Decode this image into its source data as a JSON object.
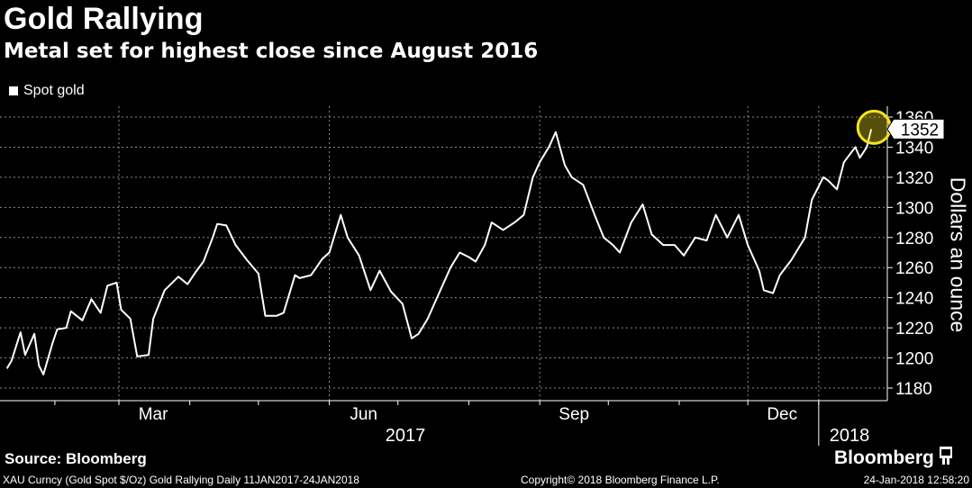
{
  "header": {
    "title": "Gold Rallying",
    "subtitle": "Metal set for highest close since August 2016"
  },
  "legend": {
    "label": "Spot gold"
  },
  "footer": {
    "source": "Source: Bloomberg",
    "ticker_line": "XAU Curncy (Gold Spot  $/Oz) Gold Rallying  Daily 11JAN2017-24JAN2018",
    "copyright": "Copyright© 2018 Bloomberg Finance L.P.",
    "timestamp": "24-Jan-2018 12:58:20",
    "brand": "Bloomberg"
  },
  "colors": {
    "background": "#000000",
    "line": "#ffffff",
    "highlight": "#f5e21b",
    "grid": "#8a8a8a"
  },
  "chart_data": {
    "type": "line",
    "title": "Gold Rallying",
    "subtitle": "Metal set for highest close since August 2016",
    "ylabel": "Dollars an ounce",
    "ylim": [
      1170,
      1360
    ],
    "yticks": [
      1180,
      1200,
      1220,
      1240,
      1260,
      1280,
      1300,
      1320,
      1340,
      1360
    ],
    "x_month_labels": [
      "Mar",
      "Jun",
      "Sep",
      "Dec"
    ],
    "x_year_labels": [
      "2017",
      "2018"
    ],
    "latest_value_label": "1352",
    "grid": true,
    "legend_position": "top-left",
    "series": [
      {
        "name": "Spot gold",
        "x": [
          "2017-01-11",
          "2017-01-13",
          "2017-01-17",
          "2017-01-19",
          "2017-01-23",
          "2017-01-25",
          "2017-01-27",
          "2017-01-31",
          "2017-02-02",
          "2017-02-06",
          "2017-02-08",
          "2017-02-13",
          "2017-02-17",
          "2017-02-21",
          "2017-02-24",
          "2017-02-28",
          "2017-03-02",
          "2017-03-06",
          "2017-03-09",
          "2017-03-14",
          "2017-03-16",
          "2017-03-21",
          "2017-03-27",
          "2017-03-31",
          "2017-04-04",
          "2017-04-07",
          "2017-04-11",
          "2017-04-13",
          "2017-04-17",
          "2017-04-21",
          "2017-04-26",
          "2017-05-01",
          "2017-05-04",
          "2017-05-09",
          "2017-05-12",
          "2017-05-17",
          "2017-05-19",
          "2017-05-24",
          "2017-05-29",
          "2017-06-01",
          "2017-06-06",
          "2017-06-09",
          "2017-06-14",
          "2017-06-19",
          "2017-06-23",
          "2017-06-28",
          "2017-07-03",
          "2017-07-07",
          "2017-07-10",
          "2017-07-14",
          "2017-07-19",
          "2017-07-24",
          "2017-07-28",
          "2017-08-01",
          "2017-08-04",
          "2017-08-08",
          "2017-08-11",
          "2017-08-16",
          "2017-08-21",
          "2017-08-25",
          "2017-08-29",
          "2017-09-01",
          "2017-09-05",
          "2017-09-08",
          "2017-09-12",
          "2017-09-15",
          "2017-09-20",
          "2017-09-25",
          "2017-09-29",
          "2017-10-03",
          "2017-10-06",
          "2017-10-11",
          "2017-10-16",
          "2017-10-20",
          "2017-10-25",
          "2017-10-30",
          "2017-11-03",
          "2017-11-08",
          "2017-11-13",
          "2017-11-17",
          "2017-11-22",
          "2017-11-27",
          "2017-12-01",
          "2017-12-06",
          "2017-12-08",
          "2017-12-12",
          "2017-12-15",
          "2017-12-20",
          "2017-12-26",
          "2017-12-29",
          "2018-01-03",
          "2018-01-05",
          "2018-01-09",
          "2018-01-12",
          "2018-01-17",
          "2018-01-19",
          "2018-01-22",
          "2018-01-24"
        ],
        "values": [
          1193,
          1198,
          1217,
          1202,
          1216,
          1195,
          1189,
          1210,
          1219,
          1220,
          1231,
          1225,
          1239,
          1230,
          1248,
          1250,
          1232,
          1226,
          1201,
          1202,
          1226,
          1245,
          1254,
          1249,
          1258,
          1264,
          1280,
          1289,
          1288,
          1275,
          1265,
          1256,
          1228,
          1228,
          1230,
          1255,
          1253,
          1255,
          1266,
          1270,
          1295,
          1280,
          1268,
          1245,
          1258,
          1244,
          1236,
          1213,
          1216,
          1226,
          1243,
          1260,
          1270,
          1267,
          1264,
          1275,
          1290,
          1285,
          1290,
          1295,
          1320,
          1330,
          1340,
          1350,
          1328,
          1320,
          1315,
          1295,
          1280,
          1275,
          1270,
          1290,
          1302,
          1282,
          1275,
          1275,
          1268,
          1280,
          1278,
          1295,
          1280,
          1295,
          1275,
          1258,
          1245,
          1243,
          1255,
          1265,
          1280,
          1305,
          1320,
          1318,
          1312,
          1330,
          1340,
          1333,
          1340,
          1352
        ]
      }
    ]
  }
}
